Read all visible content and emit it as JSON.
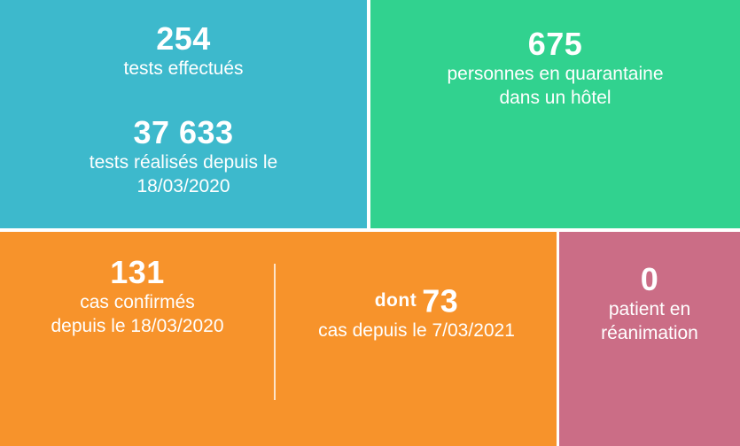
{
  "colors": {
    "tests_tile": "#3db9cc",
    "quarantine_tile": "#31d28f",
    "cases_tile": "#f7932b",
    "icu_tile": "#cb6d86"
  },
  "tests": {
    "daily_value": "254",
    "daily_label": "tests effectués",
    "total_value": "37 633",
    "total_label_line1": "tests réalisés depuis le",
    "total_label_line2": "18/03/2020"
  },
  "quarantine": {
    "value": "675",
    "label_line1": "personnes en quarantaine",
    "label_line2": "dans un hôtel"
  },
  "cases": {
    "confirmed_value": "131",
    "confirmed_label_line1": "cas confirmés",
    "confirmed_label_line2": "depuis le 18/03/2020",
    "subset_prefix": "dont",
    "subset_value": "73",
    "subset_label": "cas depuis le 7/03/2021"
  },
  "icu": {
    "value": "0",
    "label_line1": "patient en",
    "label_line2": "réanimation"
  }
}
